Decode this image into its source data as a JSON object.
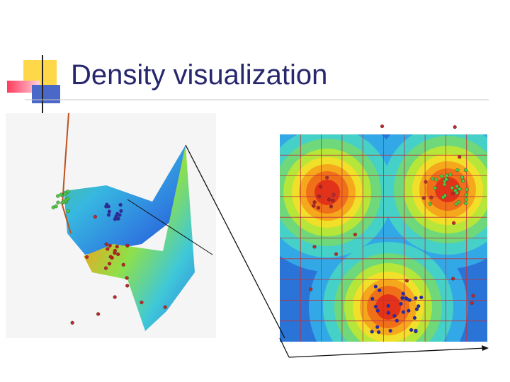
{
  "slide": {
    "title": "Density visualization"
  }
}
